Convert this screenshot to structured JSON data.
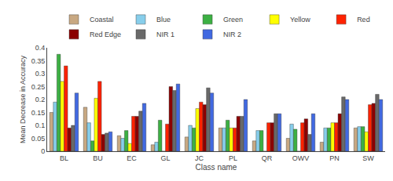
{
  "chart_data": {
    "type": "bar",
    "xlabel": "Class name",
    "ylabel": "Mean Decrease in Accuracy",
    "categories": [
      "BL",
      "BU",
      "EC",
      "GL",
      "JC",
      "PL",
      "QR",
      "OWV",
      "PN",
      "SW"
    ],
    "series": [
      {
        "name": "Coastal",
        "color": "#c8a882",
        "values": [
          0.15,
          0.17,
          0.06,
          0.025,
          0.055,
          0.09,
          0.04,
          0.05,
          0.035,
          0.09
        ]
      },
      {
        "name": "Blue",
        "color": "#87ceeb",
        "values": [
          0.19,
          0.11,
          0.05,
          0.035,
          0.1,
          0.09,
          0.08,
          0.105,
          0.09,
          0.095
        ]
      },
      {
        "name": "Green",
        "color": "#3cb043",
        "values": [
          0.375,
          0.04,
          0.08,
          0.12,
          0.09,
          0.12,
          0.08,
          0.085,
          0.09,
          0.095
        ]
      },
      {
        "name": "Yellow",
        "color": "#ffff00",
        "values": [
          0.27,
          0.205,
          0.03,
          0.0,
          0.165,
          0.09,
          0.0,
          0.0,
          0.11,
          0.075
        ]
      },
      {
        "name": "Red",
        "color": "#ff2200",
        "values": [
          0.33,
          0.27,
          0.135,
          0.105,
          0.19,
          0.09,
          0.11,
          0.11,
          0.11,
          0.18
        ]
      },
      {
        "name": "Red Edge",
        "color": "#8b0000",
        "values": [
          0.09,
          0.065,
          0.135,
          0.25,
          0.18,
          0.135,
          0.11,
          0.125,
          0.145,
          0.185
        ]
      },
      {
        "name": "NIR 1",
        "color": "#696969",
        "values": [
          0.1,
          0.07,
          0.155,
          0.235,
          0.245,
          0.135,
          0.145,
          0.065,
          0.21,
          0.22
        ]
      },
      {
        "name": "NIR 2",
        "color": "#4169e1",
        "values": [
          0.225,
          0.075,
          0.185,
          0.26,
          0.225,
          0.2,
          0.145,
          0.145,
          0.2,
          0.2
        ]
      }
    ],
    "ylim": [
      0,
      0.4
    ],
    "yticks": [
      0,
      0.05,
      0.1,
      0.15,
      0.2,
      0.25,
      0.3,
      0.35,
      0.4
    ],
    "grid": false,
    "legend": "top"
  }
}
